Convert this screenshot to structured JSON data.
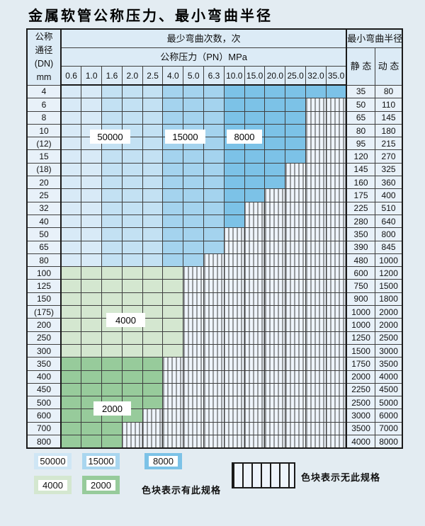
{
  "title": "金属软管公称压力、最小弯曲半径",
  "header": {
    "dn_lines": [
      "公称",
      "通径",
      "(DN)",
      "mm"
    ],
    "bend_cycles": "最少弯曲次数，次",
    "pressure": "公称压力（PN）MPa",
    "pressures": [
      "0.6",
      "1.0",
      "1.6",
      "2.0",
      "2.5",
      "4.0",
      "5.0",
      "6.3",
      "10.0",
      "15.0",
      "20.0",
      "25.0",
      "32.0",
      "35.0"
    ],
    "radius": "最小弯曲半径",
    "static": "静 态",
    "dynamic": "动 态"
  },
  "colors": {
    "blue_50000_light": "#d8eaf7",
    "blue_50000": "#c3e1f3",
    "blue_15000": "#a4d3ee",
    "blue_8000": "#7cc2e7",
    "green_4000": "#d4e7d0",
    "green_2000": "#97cb9b",
    "hatch_bg": "#eef4fb",
    "grid_line": "#3f3f3f",
    "header_bg": "#dcebf6",
    "side_bg": "#e8f1f9"
  },
  "table": {
    "rows": [
      {
        "dn": "4",
        "colored": 14,
        "fill": "blue",
        "static": "35",
        "dynamic": "80"
      },
      {
        "dn": "6",
        "colored": 12,
        "fill": "blue",
        "static": "50",
        "dynamic": "110"
      },
      {
        "dn": "8",
        "colored": 12,
        "fill": "blue",
        "static": "65",
        "dynamic": "145"
      },
      {
        "dn": "10",
        "colored": 12,
        "fill": "blue",
        "static": "80",
        "dynamic": "180"
      },
      {
        "dn": "(12)",
        "colored": 12,
        "fill": "blue",
        "static": "95",
        "dynamic": "215"
      },
      {
        "dn": "15",
        "colored": 12,
        "fill": "blue",
        "static": "120",
        "dynamic": "270"
      },
      {
        "dn": "(18)",
        "colored": 11,
        "fill": "blue",
        "static": "145",
        "dynamic": "325"
      },
      {
        "dn": "20",
        "colored": 11,
        "fill": "blue",
        "static": "160",
        "dynamic": "360"
      },
      {
        "dn": "25",
        "colored": 10,
        "fill": "blue",
        "static": "175",
        "dynamic": "400"
      },
      {
        "dn": "32",
        "colored": 9,
        "fill": "blue",
        "static": "225",
        "dynamic": "510"
      },
      {
        "dn": "40",
        "colored": 9,
        "fill": "blue",
        "static": "280",
        "dynamic": "640"
      },
      {
        "dn": "50",
        "colored": 8,
        "fill": "blue",
        "static": "350",
        "dynamic": "800"
      },
      {
        "dn": "65",
        "colored": 8,
        "fill": "blue",
        "static": "390",
        "dynamic": "845"
      },
      {
        "dn": "80",
        "colored": 7,
        "fill": "blue",
        "static": "480",
        "dynamic": "1000"
      },
      {
        "dn": "100",
        "colored": 6,
        "fill": "g1",
        "static": "600",
        "dynamic": "1200"
      },
      {
        "dn": "125",
        "colored": 6,
        "fill": "g1",
        "static": "750",
        "dynamic": "1500"
      },
      {
        "dn": "150",
        "colored": 6,
        "fill": "g1",
        "static": "900",
        "dynamic": "1800"
      },
      {
        "dn": "(175)",
        "colored": 6,
        "fill": "g1",
        "static": "1000",
        "dynamic": "2000"
      },
      {
        "dn": "200",
        "colored": 6,
        "fill": "g1",
        "static": "1000",
        "dynamic": "2000"
      },
      {
        "dn": "250",
        "colored": 6,
        "fill": "g1",
        "static": "1250",
        "dynamic": "2500"
      },
      {
        "dn": "300",
        "colored": 6,
        "fill": "g1",
        "static": "1500",
        "dynamic": "3000"
      },
      {
        "dn": "350",
        "colored": 5,
        "fill": "g2",
        "static": "1750",
        "dynamic": "3500"
      },
      {
        "dn": "400",
        "colored": 5,
        "fill": "g2",
        "static": "2000",
        "dynamic": "4000"
      },
      {
        "dn": "450",
        "colored": 5,
        "fill": "g2",
        "static": "2250",
        "dynamic": "4500"
      },
      {
        "dn": "500",
        "colored": 5,
        "fill": "g2",
        "static": "2500",
        "dynamic": "5000"
      },
      {
        "dn": "600",
        "colored": 4,
        "fill": "g2",
        "static": "3000",
        "dynamic": "6000"
      },
      {
        "dn": "700",
        "colored": 3,
        "fill": "g2",
        "static": "3500",
        "dynamic": "7000"
      },
      {
        "dn": "800",
        "colored": 3,
        "fill": "g2",
        "static": "4000",
        "dynamic": "8000"
      }
    ]
  },
  "overlays": [
    {
      "id": "label-50000",
      "text": "50000"
    },
    {
      "id": "label-15000",
      "text": "15000"
    },
    {
      "id": "label-8000",
      "text": "8000"
    },
    {
      "id": "label-4000",
      "text": "4000"
    },
    {
      "id": "label-2000",
      "text": "2000"
    }
  ],
  "legend": {
    "items": [
      {
        "label": "50000",
        "color": "#cfe6f5"
      },
      {
        "label": "15000",
        "color": "#a9d6ef"
      },
      {
        "label": "8000",
        "color": "#7cc2e7"
      },
      {
        "label": "4000",
        "color": "#d4e7d0"
      },
      {
        "label": "2000",
        "color": "#97cb9b"
      }
    ],
    "has_spec": "色块表示有此规格",
    "no_spec": "色块表示无此规格"
  }
}
